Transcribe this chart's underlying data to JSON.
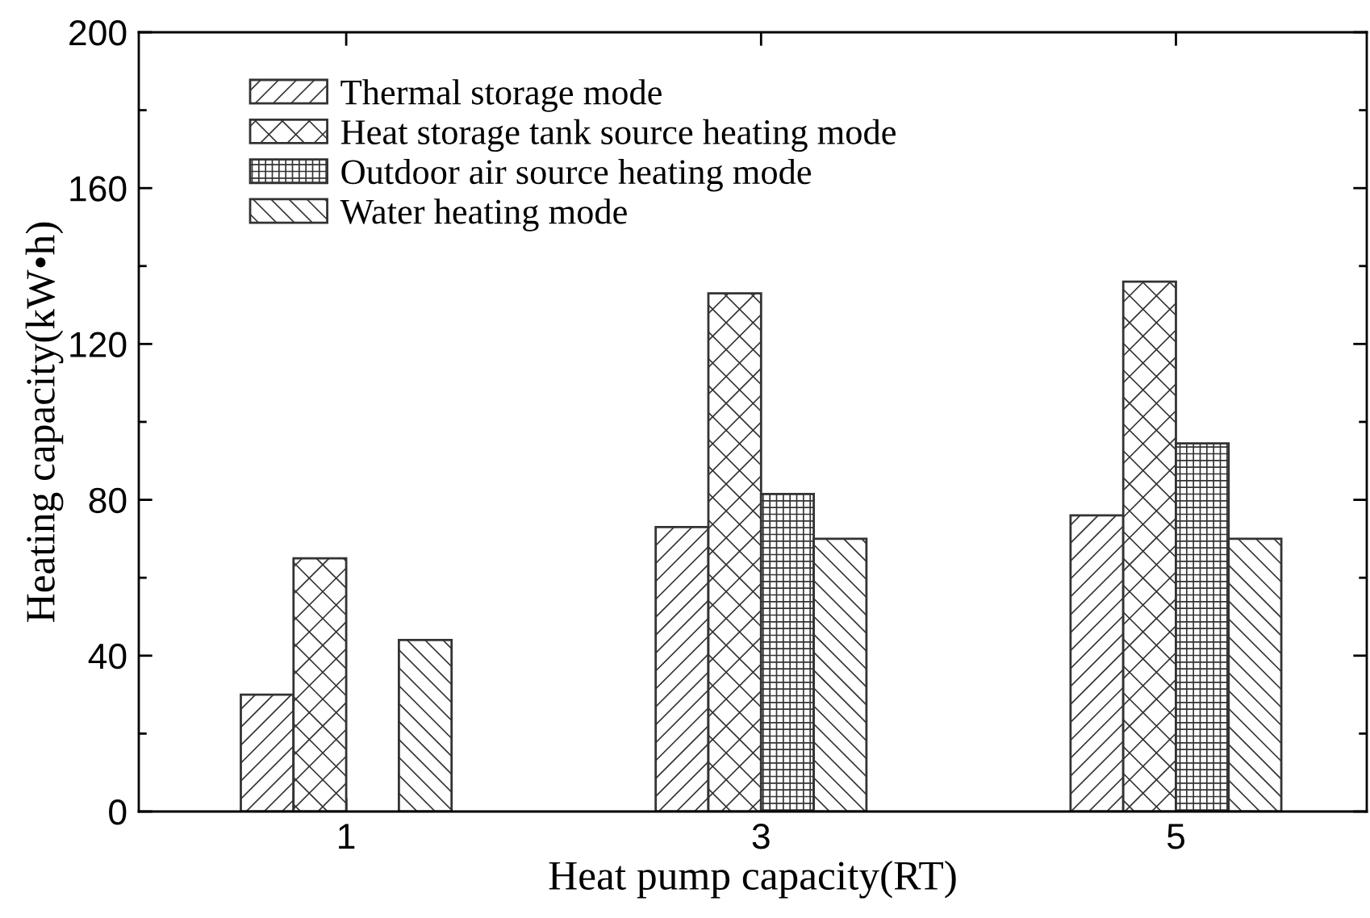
{
  "chart_data": {
    "type": "bar",
    "xlabel": "Heat pump capacity(RT)",
    "ylabel": "Heating capacity(kW•h)",
    "categories": [
      "1",
      "3",
      "5"
    ],
    "series": [
      {
        "name": "Thermal storage mode",
        "color": "#333333",
        "values": [
          30,
          73,
          76
        ]
      },
      {
        "name": "Heat storage tank source heating mode",
        "color": "#333333",
        "values": [
          65,
          133,
          136
        ]
      },
      {
        "name": "Outdoor air source heating mode",
        "color": "#333333",
        "values": [
          null,
          81.5,
          94.5
        ]
      },
      {
        "name": "Water heating mode",
        "color": "#333333",
        "values": [
          44,
          70,
          70
        ]
      }
    ],
    "ylim": [
      0,
      200
    ],
    "yticks": [
      0,
      {
        "value": 20,
        "label": null
      },
      40,
      {
        "value": 60,
        "label": null
      },
      80,
      {
        "value": 100,
        "label": null
      },
      120,
      {
        "value": 140,
        "label": null
      },
      160,
      {
        "value": 180,
        "label": null
      },
      200
    ],
    "legend": "top left"
  }
}
